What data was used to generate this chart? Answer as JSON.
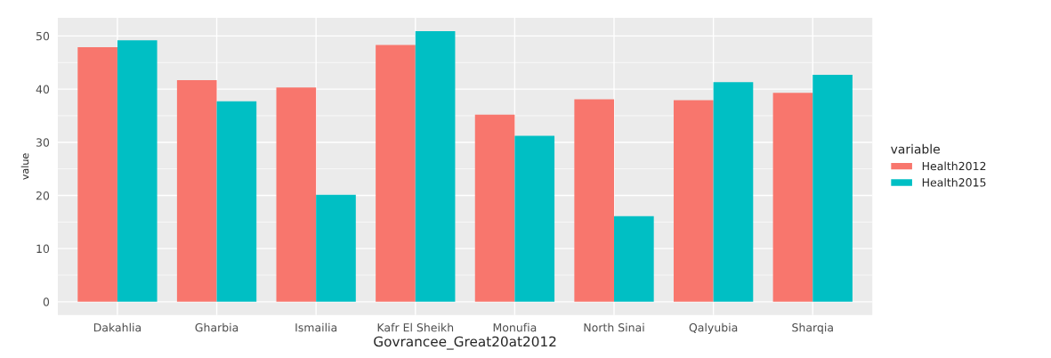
{
  "chart_data": {
    "type": "bar",
    "xlabel": "Govrancee_Great20at2012",
    "ylabel": "value",
    "legend_title": "variable",
    "categories": [
      "Dakahlia",
      "Gharbia",
      "Ismailia",
      "Kafr El Sheikh",
      "Monufia",
      "North Sinai",
      "Qalyubia",
      "Sharqia"
    ],
    "series": [
      {
        "name": "Health2012",
        "color": "#f8766d",
        "values": [
          47.9,
          41.7,
          40.3,
          48.3,
          35.2,
          38.1,
          37.9,
          39.3
        ]
      },
      {
        "name": "Health2015",
        "color": "#00bfc4",
        "values": [
          49.2,
          37.7,
          20.1,
          50.9,
          31.2,
          16.1,
          41.3,
          42.7
        ]
      }
    ],
    "ylim": [
      -2.5,
      53.4
    ],
    "yticks": [
      0,
      10,
      20,
      30,
      40,
      50
    ],
    "grid": true,
    "legend": "right"
  }
}
